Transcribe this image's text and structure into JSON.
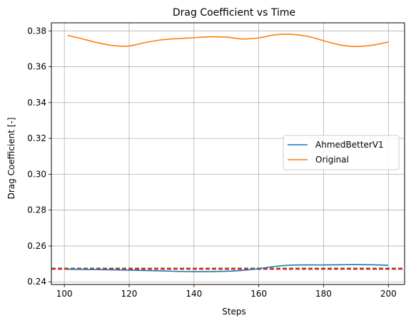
{
  "chart_data": {
    "type": "line",
    "title": "Drag Coefficient vs Time",
    "xlabel": "Steps",
    "ylabel": "Drag Coefficient [-]",
    "xlim": [
      96,
      205
    ],
    "ylim": [
      0.2385,
      0.3845
    ],
    "xticks": [
      100,
      120,
      140,
      160,
      180,
      200
    ],
    "yticks": [
      0.24,
      0.26,
      0.28,
      0.3,
      0.32,
      0.34,
      0.36,
      0.38
    ],
    "ytick_labels": [
      "0.24",
      "0.26",
      "0.28",
      "0.30",
      "0.32",
      "0.34",
      "0.36",
      "0.38"
    ],
    "grid": true,
    "legend_position": "center-right",
    "series": [
      {
        "name": "AhmedBetterV1",
        "color": "#1f77b4",
        "x": [
          101,
          105,
          110,
          115,
          120,
          125,
          130,
          135,
          140,
          145,
          150,
          155,
          160,
          165,
          170,
          175,
          180,
          185,
          190,
          195,
          200
        ],
        "values": [
          0.247,
          0.2469,
          0.2468,
          0.2467,
          0.2465,
          0.2463,
          0.2461,
          0.2458,
          0.2457,
          0.2457,
          0.2459,
          0.2464,
          0.2473,
          0.2486,
          0.2493,
          0.2494,
          0.2494,
          0.2495,
          0.2496,
          0.2495,
          0.2492
        ]
      },
      {
        "name": "Original",
        "color": "#ff7f0e",
        "x": [
          101,
          105,
          110,
          115,
          120,
          125,
          130,
          135,
          140,
          145,
          150,
          155,
          160,
          165,
          170,
          175,
          180,
          185,
          190,
          195,
          200
        ],
        "values": [
          0.3775,
          0.3758,
          0.3735,
          0.3718,
          0.3716,
          0.3735,
          0.375,
          0.3757,
          0.3762,
          0.3767,
          0.3765,
          0.3755,
          0.3761,
          0.3778,
          0.3781,
          0.377,
          0.3745,
          0.3722,
          0.3713,
          0.372,
          0.3738
        ]
      }
    ],
    "reference_lines": [
      {
        "y": 0.2474,
        "color": "#2ca02c",
        "style": "dashed"
      },
      {
        "y": 0.2472,
        "color": "#d62728",
        "style": "dashed"
      }
    ]
  }
}
